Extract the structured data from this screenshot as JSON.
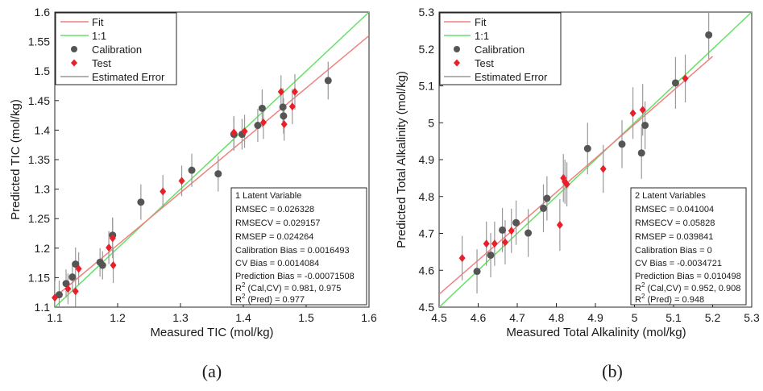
{
  "chart_data": [
    {
      "type": "scatter",
      "caption": "(a)",
      "xlabel": "Measured TIC (mol/kg)",
      "ylabel": "Predicted TIC (mol/kg)",
      "xlim": [
        1.1,
        1.6
      ],
      "ylim": [
        1.1,
        1.6
      ],
      "x_ticks": [
        "1.1",
        "1.2",
        "1.3",
        "1.4",
        "1.5",
        "1.6"
      ],
      "y_ticks": [
        "1.1",
        "1.15",
        "1.2",
        "1.25",
        "1.3",
        "1.35",
        "1.4",
        "1.45",
        "1.5",
        "1.55",
        "1.6"
      ],
      "grid": false,
      "legend_position": "top-left",
      "legend": [
        "Fit",
        "1:1",
        "Calibration",
        "Test",
        "Estimated Error"
      ],
      "colors": {
        "fit": "#f08080",
        "one_to_one": "#66e066",
        "calibration": "#555555",
        "test": "#e8202a",
        "error": "#999999"
      },
      "fit_line": {
        "x": [
          1.09,
          1.6
        ],
        "y": [
          1.108,
          1.56
        ]
      },
      "one_to_one_line": {
        "x": [
          1.09,
          1.6
        ],
        "y": [
          1.09,
          1.6
        ]
      },
      "series": [
        {
          "name": "Calibration",
          "marker": "circle",
          "x": [
            1.107,
            1.118,
            1.128,
            1.133,
            1.172,
            1.176,
            1.192,
            1.237,
            1.318,
            1.36,
            1.385,
            1.398,
            1.423,
            1.43,
            1.463,
            1.464,
            1.535
          ],
          "y": [
            1.121,
            1.14,
            1.151,
            1.173,
            1.176,
            1.171,
            1.222,
            1.278,
            1.332,
            1.326,
            1.393,
            1.393,
            1.408,
            1.437,
            1.439,
            1.424,
            1.484
          ],
          "err": [
            0.024,
            0.024,
            0.024,
            0.028,
            0.024,
            0.024,
            0.03,
            0.03,
            0.028,
            0.03,
            0.028,
            0.026,
            0.028,
            0.032,
            0.032,
            0.03,
            0.032
          ]
        },
        {
          "name": "Test",
          "marker": "diamond",
          "x": [
            1.1,
            1.121,
            1.133,
            1.138,
            1.186,
            1.192,
            1.193,
            1.272,
            1.302,
            1.385,
            1.402,
            1.432,
            1.46,
            1.465,
            1.478,
            1.482
          ],
          "y": [
            1.116,
            1.131,
            1.127,
            1.165,
            1.201,
            1.217,
            1.171,
            1.296,
            1.314,
            1.396,
            1.398,
            1.413,
            1.465,
            1.41,
            1.44,
            1.465
          ],
          "err": [
            0.028,
            0.026,
            0.026,
            0.028,
            0.028,
            0.034,
            0.03,
            0.028,
            0.026,
            0.028,
            0.028,
            0.028,
            0.028,
            0.028,
            0.03,
            0.03
          ]
        }
      ],
      "stats": {
        "lines": [
          "1 Latent Variable",
          "RMSEC = 0.026328",
          "RMSECV = 0.029157",
          "RMSEP = 0.024264",
          "Calibration Bias = 0.0016493",
          "CV Bias = 0.0014084",
          "Prediction Bias = -0.00071508"
        ],
        "r2_cal_prefix": "R",
        "r2_cal_sup": "2",
        "r2_cal_rest": " (Cal,CV) = 0.981, 0.975",
        "r2_pred_prefix": "R",
        "r2_pred_sup": "2",
        "r2_pred_rest": " (Pred) = 0.977"
      }
    },
    {
      "type": "scatter",
      "caption": "(b)",
      "xlabel": "Measured Total Alkalinity (mol/kg)",
      "ylabel": "Predicted Total Alkalinity (mol/kg)",
      "xlim": [
        4.5,
        5.3
      ],
      "ylim": [
        4.5,
        5.3
      ],
      "x_ticks": [
        "4.5",
        "4.6",
        "4.7",
        "4.8",
        "4.9",
        "5",
        "5.1",
        "5.2",
        "5.3"
      ],
      "y_ticks": [
        "4.5",
        "4.6",
        "4.7",
        "4.8",
        "4.9",
        "5",
        "5.1",
        "5.2",
        "5.3"
      ],
      "grid": false,
      "legend_position": "top-left",
      "legend": [
        "Fit",
        "1:1",
        "Calibration",
        "Test",
        "Estimated Error"
      ],
      "colors": {
        "fit": "#f08080",
        "one_to_one": "#66e066",
        "calibration": "#555555",
        "test": "#e8202a",
        "error": "#999999"
      },
      "fit_line": {
        "x": [
          4.5,
          5.2
        ],
        "y": [
          4.535,
          5.18
        ]
      },
      "one_to_one_line": {
        "x": [
          4.5,
          5.3
        ],
        "y": [
          4.5,
          5.3
        ]
      },
      "series": [
        {
          "name": "Calibration",
          "marker": "circle",
          "x": [
            4.597,
            4.632,
            4.662,
            4.697,
            4.728,
            4.767,
            4.776,
            4.88,
            4.968,
            5.018,
            5.027,
            5.105,
            5.19
          ],
          "y": [
            4.597,
            4.641,
            4.709,
            4.729,
            4.701,
            4.768,
            4.795,
            4.93,
            4.942,
            4.918,
            4.993,
            5.108,
            5.238
          ],
          "err": [
            0.06,
            0.06,
            0.06,
            0.06,
            0.065,
            0.065,
            0.06,
            0.07,
            0.065,
            0.07,
            0.065,
            0.07,
            0.065
          ]
        },
        {
          "name": "Test",
          "marker": "diamond",
          "x": [
            4.559,
            4.621,
            4.642,
            4.669,
            4.685,
            4.809,
            4.818,
            4.822,
            4.827,
            4.92,
            4.996,
            5.021,
            5.13
          ],
          "y": [
            4.633,
            4.672,
            4.672,
            4.676,
            4.707,
            4.723,
            4.85,
            4.84,
            4.833,
            4.875,
            5.026,
            5.035,
            5.12
          ],
          "err": [
            0.06,
            0.06,
            0.06,
            0.06,
            0.06,
            0.07,
            0.065,
            0.06,
            0.06,
            0.065,
            0.07,
            0.07,
            0.065
          ]
        }
      ],
      "stats": {
        "lines": [
          "2 Latent Variables",
          "RMSEC = 0.041004",
          "RMSECV = 0.05828",
          "RMSEP = 0.039841",
          "Calibration Bias = 0",
          "CV Bias = -0.0034721",
          "Prediction Bias = 0.010498"
        ],
        "r2_cal_prefix": "R",
        "r2_cal_sup": "2",
        "r2_cal_rest": " (Cal,CV) = 0.952, 0.908",
        "r2_pred_prefix": "R",
        "r2_pred_sup": "2",
        "r2_pred_rest": " (Pred) = 0.948"
      }
    }
  ]
}
